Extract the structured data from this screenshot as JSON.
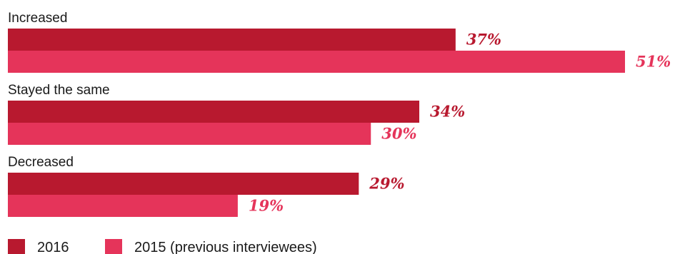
{
  "chart_data": {
    "type": "bar",
    "orientation": "horizontal",
    "categories": [
      "Increased",
      "Stayed the same",
      "Decreased"
    ],
    "series": [
      {
        "name": "2016",
        "values": [
          37,
          34,
          29
        ],
        "color": "#b8192f"
      },
      {
        "name": "2015 (previous interviewees)",
        "values": [
          51,
          30,
          19
        ],
        "color": "#e5345a"
      }
    ],
    "value_suffix": "%",
    "xlim": [
      0,
      51
    ],
    "grid": false,
    "legend_position": "bottom-left"
  }
}
